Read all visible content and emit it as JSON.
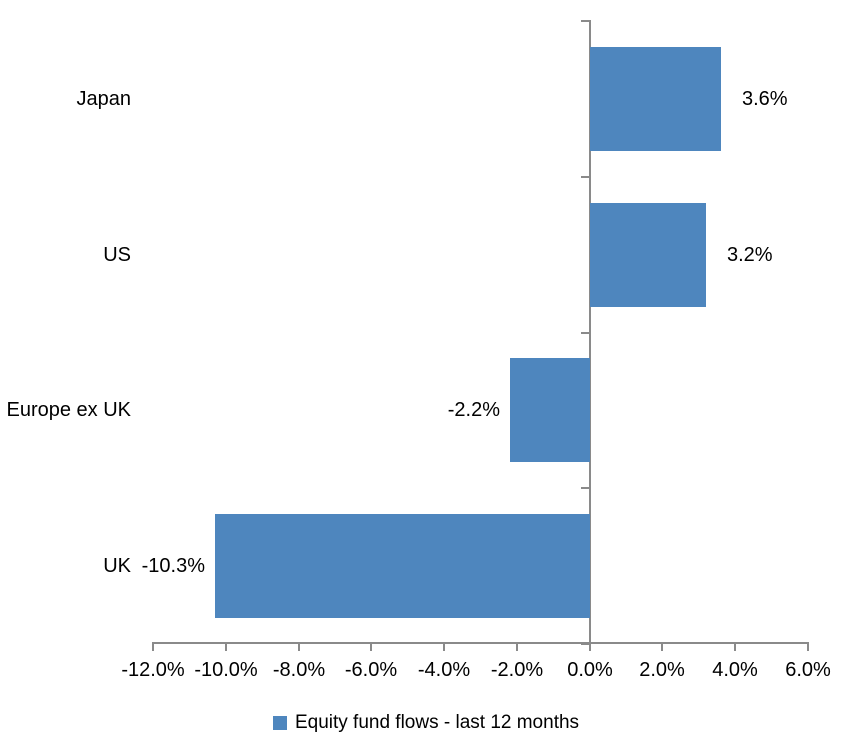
{
  "chart_data": {
    "type": "bar",
    "orientation": "horizontal",
    "title": "",
    "categories": [
      "Japan",
      "US",
      "Europe ex UK",
      "UK"
    ],
    "series": [
      {
        "name": "Equity fund flows - last 12 months",
        "values": [
          3.6,
          3.2,
          -2.2,
          -10.3
        ],
        "data_labels": [
          "3.6%",
          "3.2%",
          "-2.2%",
          "-10.3%"
        ]
      }
    ],
    "xlim": [
      -12,
      6
    ],
    "xticks": [
      -12,
      -10,
      -8,
      -6,
      -4,
      -2,
      0,
      2,
      4,
      6
    ],
    "xtick_labels": [
      "-12.0%",
      "-10.0%",
      "-8.0%",
      "-6.0%",
      "-4.0%",
      "-2.0%",
      "0.0%",
      "2.0%",
      "4.0%",
      "6.0%"
    ],
    "grid": false,
    "legend": {
      "position": "bottom",
      "entries": [
        "Equity fund flows - last 12 months"
      ]
    },
    "colors": {
      "bar": "#4E86BE",
      "axis": "#8A8A8A",
      "text": "#000000"
    }
  }
}
